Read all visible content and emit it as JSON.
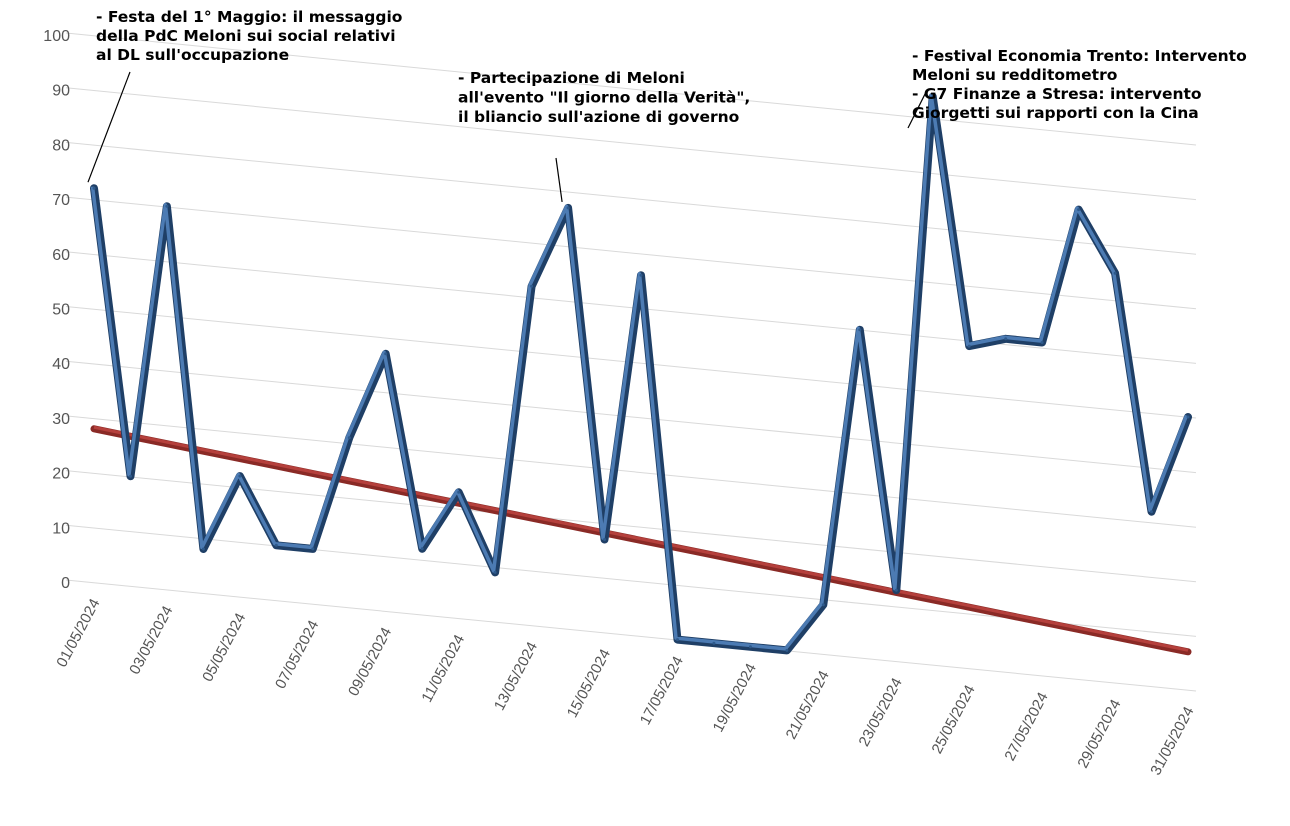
{
  "chart_data": {
    "type": "line",
    "title": "",
    "xlabel": "",
    "ylabel": "",
    "ylim": [
      0,
      100
    ],
    "y_ticks": [
      "0",
      "10",
      "20",
      "30",
      "40",
      "50",
      "60",
      "70",
      "80",
      "90",
      "100"
    ],
    "x": [
      "01/05/2024",
      "02/05/2024",
      "03/05/2024",
      "04/05/2024",
      "05/05/2024",
      "06/05/2024",
      "07/05/2024",
      "08/05/2024",
      "09/05/2024",
      "10/05/2024",
      "11/05/2024",
      "12/05/2024",
      "13/05/2024",
      "14/05/2024",
      "15/05/2024",
      "16/05/2024",
      "17/05/2024",
      "18/05/2024",
      "19/05/2024",
      "20/05/2024",
      "21/05/2024",
      "22/05/2024",
      "23/05/2024",
      "24/05/2024",
      "25/05/2024",
      "26/05/2024",
      "27/05/2024",
      "28/05/2024",
      "29/05/2024",
      "30/05/2024",
      "31/05/2024"
    ],
    "x_tick_labels": [
      "01/05/2024",
      "03/05/2024",
      "05/05/2024",
      "07/05/2024",
      "09/05/2024",
      "11/05/2024",
      "13/05/2024",
      "15/05/2024",
      "17/05/2024",
      "19/05/2024",
      "21/05/2024",
      "23/05/2024",
      "25/05/2024",
      "27/05/2024",
      "29/05/2024",
      "31/05/2024"
    ],
    "series": [
      {
        "values": [
          72,
          20,
          70,
          8,
          22,
          10,
          10,
          31,
          47,
          12,
          23,
          9,
          62,
          77,
          17,
          66,
          0,
          0,
          0,
          0,
          9,
          60,
          13,
          104,
          59,
          61,
          61,
          86,
          75,
          32,
          50
        ],
        "color": "#2e5a8c"
      },
      {
        "type": "trendline",
        "values": [
          28,
          27.3,
          26.6,
          25.9,
          25.2,
          24.5,
          23.8,
          23.1,
          22.4,
          21.7,
          21.0,
          20.3,
          19.6,
          18.9,
          18.2,
          17.5,
          16.8,
          16.1,
          15.4,
          14.7,
          14.0,
          13.3,
          12.6,
          11.9,
          11.2,
          10.5,
          9.8,
          9.1,
          8.4,
          7.7,
          7.0
        ],
        "color": "#b5403c"
      }
    ],
    "annotations": [
      {
        "point_index": 0,
        "lines": [
          "- Festa del 1° Maggio: il messaggio",
          "della PdC Meloni sui social relativi",
          "al DL sull'occupazione"
        ]
      },
      {
        "point_index": 13,
        "lines": [
          "- Partecipazione di Meloni",
          "all'evento \"Il giorno della Verità\",",
          "il bliancio sull'azione di governo"
        ]
      },
      {
        "point_index": 23,
        "lines": [
          "- Festival Economia Trento: Intervento",
          "Meloni su redditometro",
          "- G7 Finanze a Stresa: intervento",
          "Giorgetti sui rapporti con la Cina"
        ]
      }
    ],
    "grid": true,
    "legend": "none"
  }
}
